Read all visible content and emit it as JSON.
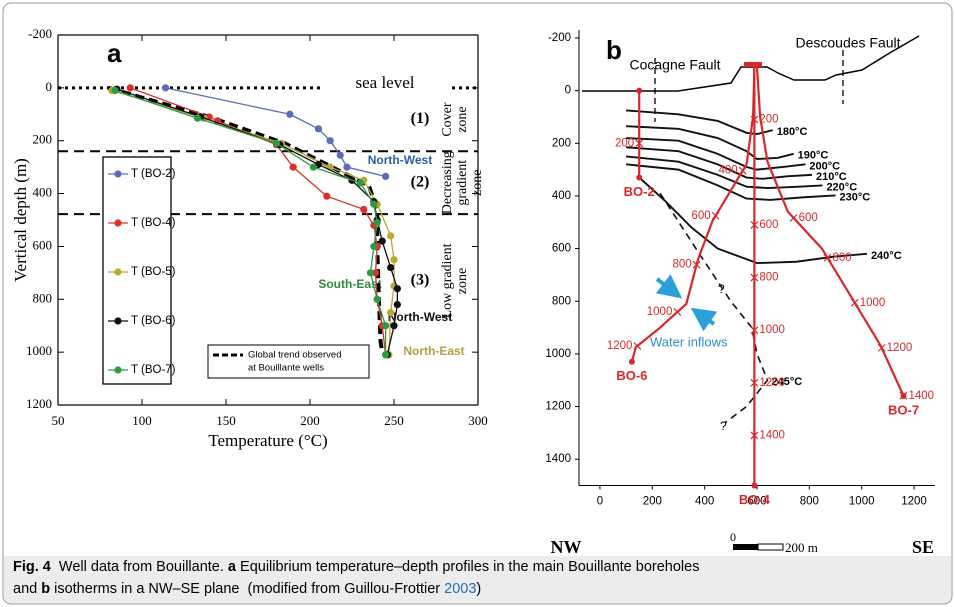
{
  "chart_data": [
    {
      "type": "line",
      "panel_label": "a",
      "xlabel": "Temperature (°C)",
      "ylabel": "Vertical depth (m)",
      "xlim": [
        50,
        300
      ],
      "ylim": [
        -200,
        1200
      ],
      "y_inverted": true,
      "xticks": [
        50,
        100,
        150,
        200,
        250,
        300
      ],
      "yticks": [
        -200,
        0,
        200,
        400,
        600,
        800,
        1000,
        1200
      ],
      "series": [
        {
          "name": "T (BO-2)",
          "color": "#5a6db4",
          "x": [
            114,
            188,
            205,
            212,
            218,
            222,
            245
          ],
          "values": [
            0,
            100,
            155,
            200,
            255,
            300,
            335
          ]
        },
        {
          "name": "T (BO-4)",
          "color": "#d9302a",
          "x": [
            93,
            140,
            145,
            180,
            190,
            210,
            232,
            238,
            240,
            239,
            240,
            243,
            245
          ],
          "values": [
            0,
            110,
            125,
            215,
            300,
            410,
            460,
            520,
            600,
            700,
            800,
            900,
            1010
          ]
        },
        {
          "name": "T (BO-5)",
          "color": "#b8a834",
          "x": [
            82,
            137,
            183,
            212,
            232,
            240,
            248,
            250,
            250,
            248,
            247
          ],
          "values": [
            10,
            115,
            210,
            300,
            350,
            440,
            560,
            650,
            750,
            850,
            1010
          ]
        },
        {
          "name": "T (BO-6)",
          "color": "#111111",
          "x": [
            85,
            135,
            182,
            205,
            225,
            238,
            240,
            243,
            248,
            252,
            252,
            250,
            246
          ],
          "values": [
            5,
            110,
            215,
            290,
            350,
            430,
            500,
            580,
            680,
            760,
            820,
            900,
            1010
          ]
        },
        {
          "name": "T (BO-7)",
          "color": "#2f9a44",
          "x": [
            84,
            133,
            180,
            202,
            230,
            238,
            240,
            238,
            236,
            240,
            245,
            245
          ],
          "values": [
            10,
            115,
            210,
            300,
            360,
            440,
            510,
            600,
            700,
            800,
            900,
            1010
          ]
        }
      ],
      "trend": {
        "name": [
          "Global trend observed",
          "at Bouillante wells"
        ],
        "color": "#000000",
        "x": [
          80,
          140,
          185,
          235,
          240,
          240,
          241,
          242,
          243
        ],
        "values": [
          0,
          110,
          210,
          370,
          460,
          600,
          800,
          960,
          1000
        ]
      },
      "sea_level": {
        "value": 0,
        "label": "sea level"
      },
      "zone_boundaries": [
        240,
        478
      ],
      "zones": [
        {
          "number": "(1)",
          "lines": [
            "Cover",
            "zone"
          ]
        },
        {
          "number": "(2)",
          "lines": [
            "Decreasing",
            "gradient",
            "zone"
          ]
        },
        {
          "number": "(3)",
          "lines": [
            "Low gradient",
            "zone"
          ]
        }
      ],
      "annotations": [
        "North-West",
        "South-East",
        "North-West",
        "North-East"
      ]
    },
    {
      "type": "well-section",
      "panel_label": "b",
      "xlim": [
        -80,
        1280
      ],
      "ylim": [
        -200,
        1500
      ],
      "y_inverted": true,
      "xticks": [
        0,
        200,
        400,
        600,
        800,
        1000,
        1200
      ],
      "yticks": [
        -200,
        0,
        200,
        400,
        600,
        800,
        1000,
        1200,
        1400
      ],
      "well_color": "#d8282b",
      "wells": [
        {
          "name": "BO-2",
          "x": [
            150,
            150
          ],
          "values": [
            0,
            330
          ],
          "markers": [
            200
          ],
          "side": "left"
        },
        {
          "name": "BO-4",
          "x": [
            590,
            590
          ],
          "values": [
            -90,
            1500
          ],
          "markers": [
            200,
            600,
            800,
            1000,
            1200,
            1400
          ],
          "side": "right"
        },
        {
          "name": "BO-6",
          "x": [
            590,
            585,
            560,
            430,
            375,
            330,
            230,
            137,
            122
          ],
          "values": [
            -90,
            100,
            280,
            495,
            640,
            810,
            900,
            975,
            1030
          ],
          "markers": [
            400,
            600,
            800,
            1000,
            1200
          ],
          "side": "left"
        },
        {
          "name": "BO-7",
          "x": [
            600,
            612,
            640,
            718,
            848,
            970,
            1073,
            1160
          ],
          "values": [
            -90,
            100,
            270,
            460,
            600,
            800,
            970,
            1160
          ],
          "markers": [
            600,
            800,
            1000,
            1200,
            1400
          ],
          "side": "right"
        }
      ],
      "isotherms": [
        {
          "name": "180°C",
          "x": [
            100,
            300,
            450,
            560,
            600,
            660
          ],
          "values": [
            75,
            90,
            115,
            160,
            165,
            150
          ]
        },
        {
          "name": "190°C",
          "x": [
            100,
            300,
            450,
            560,
            600,
            680,
            740
          ],
          "values": [
            135,
            145,
            180,
            230,
            260,
            255,
            240
          ]
        },
        {
          "name": "200°C",
          "x": [
            100,
            300,
            450,
            560,
            600,
            700,
            785
          ],
          "values": [
            180,
            190,
            240,
            290,
            300,
            290,
            280
          ]
        },
        {
          "name": "210°C",
          "x": [
            100,
            300,
            450,
            560,
            620,
            720,
            810
          ],
          "values": [
            215,
            230,
            280,
            330,
            335,
            325,
            320
          ]
        },
        {
          "name": "220°C",
          "x": [
            100,
            300,
            450,
            560,
            640,
            760,
            850
          ],
          "values": [
            250,
            270,
            320,
            365,
            370,
            365,
            360
          ]
        },
        {
          "name": "230°C",
          "x": [
            100,
            300,
            450,
            560,
            650,
            780,
            900
          ],
          "values": [
            280,
            300,
            360,
            410,
            415,
            405,
            398
          ]
        },
        {
          "name": "240°C",
          "x": [
            150,
            250,
            350,
            450,
            600,
            750,
            900,
            1020
          ],
          "values": [
            330,
            420,
            520,
            600,
            655,
            650,
            630,
            620
          ]
        },
        {
          "name": "245°C",
          "x": [
            230,
            380,
            500,
            580,
            600,
            640,
            560,
            480
          ],
          "values": [
            390,
            620,
            800,
            900,
            1000,
            1100,
            1200,
            1260
          ],
          "dashed": true,
          "label_at": 5
        }
      ],
      "faults": [
        "Cocagne Fault",
        "Descoudes Fault"
      ],
      "water_inflows": "Water inflows",
      "unknown_marks": [
        "?",
        "?"
      ],
      "directions": [
        "NW",
        "SE"
      ],
      "scale_bar": [
        "0",
        "200 m"
      ]
    }
  ],
  "caption": {
    "lines": [
      [
        {
          "text": "Fig. 4",
          "bold": true
        },
        {
          "text": "  Well data from Bouillante. "
        },
        {
          "text": "a",
          "bold": true
        },
        {
          "text": " Equilibrium temperature–depth profiles in the main Bouillante boreholes"
        }
      ],
      [
        {
          "text": "and "
        },
        {
          "text": "b",
          "bold": true
        },
        {
          "text": " isotherms in a NW–SE plane  (modified from Guillou-Frottier "
        },
        {
          "text": "2003",
          "color": "#1a6fc0"
        },
        {
          "text": ")"
        }
      ]
    ]
  }
}
